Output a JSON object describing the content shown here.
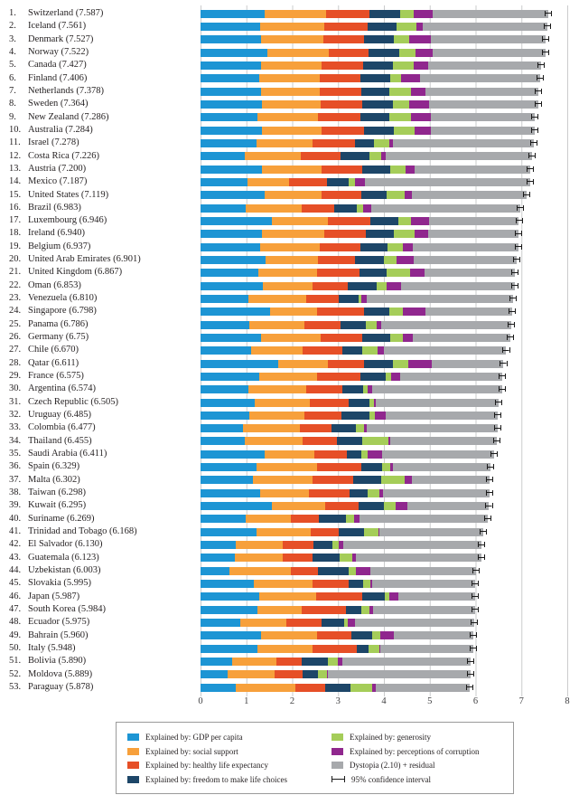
{
  "axis": {
    "ticks": [
      "0",
      "1",
      "2",
      "3",
      "4",
      "5",
      "6",
      "7",
      "8"
    ],
    "min": 0,
    "max": 8
  },
  "legend": {
    "entries": [
      {
        "label": "Explained by: GDP per capita",
        "color": "#1d95d4"
      },
      {
        "label": "Explained by: social support",
        "color": "#f7a03b"
      },
      {
        "label": "Explained by: healthy life expectancy",
        "color": "#e64f27"
      },
      {
        "label": "Explained by: freedom to make life choices",
        "color": "#1d4668"
      },
      {
        "label": "Explained by: generosity",
        "color": "#a5cd59"
      },
      {
        "label": "Explained by: perceptions of corruption",
        "color": "#90278e"
      },
      {
        "label": "Dystopia (2.10) + residual",
        "color": "#a7a9ac"
      },
      {
        "label": "95% confidence interval",
        "type": "whisker",
        "color": "#1a1a1a"
      }
    ]
  },
  "chart_data": {
    "type": "bar",
    "stacked": true,
    "orientation": "horizontal",
    "xlim": [
      0,
      8
    ],
    "grid": true,
    "ci_halfwidth": 0.08,
    "series_keys": [
      "gdp-per-capita",
      "social-support",
      "healthy-life-expectancy",
      "freedom",
      "generosity",
      "corruption",
      "dystopia-residual"
    ],
    "series_labels": [
      "Explained by: GDP per capita",
      "Explained by: social support",
      "Explained by: healthy life expectancy",
      "Explained by: freedom to make life choices",
      "Explained by: generosity",
      "Explained by: perceptions of corruption",
      "Dystopia (2.10) + residual"
    ],
    "series_colors": [
      "#1d95d4",
      "#f7a03b",
      "#e64f27",
      "#1d4668",
      "#a5cd59",
      "#90278e",
      "#a7a9ac"
    ],
    "rows": [
      {
        "rank": 1,
        "country": "Switzerland",
        "score": "7.587",
        "values": [
          1.397,
          1.35,
          0.941,
          0.666,
          0.297,
          0.42,
          2.517
        ]
      },
      {
        "rank": 2,
        "country": "Iceland",
        "score": "7.561",
        "values": [
          1.302,
          1.402,
          0.948,
          0.629,
          0.436,
          0.141,
          2.702
        ]
      },
      {
        "rank": 3,
        "country": "Denmark",
        "score": "7.527",
        "values": [
          1.325,
          1.361,
          0.875,
          0.649,
          0.341,
          0.484,
          2.492
        ]
      },
      {
        "rank": 4,
        "country": "Norway",
        "score": "7.522",
        "values": [
          1.459,
          1.331,
          0.885,
          0.67,
          0.347,
          0.365,
          2.465
        ]
      },
      {
        "rank": 5,
        "country": "Canada",
        "score": "7.427",
        "values": [
          1.326,
          1.323,
          0.906,
          0.633,
          0.458,
          0.33,
          2.452
        ]
      },
      {
        "rank": 6,
        "country": "Finland",
        "score": "7.406",
        "values": [
          1.29,
          1.318,
          0.889,
          0.642,
          0.234,
          0.414,
          2.62
        ]
      },
      {
        "rank": 7,
        "country": "Netherlands",
        "score": "7.378",
        "values": [
          1.329,
          1.28,
          0.893,
          0.616,
          0.476,
          0.318,
          2.466
        ]
      },
      {
        "rank": 8,
        "country": "Sweden",
        "score": "7.364",
        "values": [
          1.332,
          1.289,
          0.911,
          0.66,
          0.363,
          0.438,
          2.371
        ]
      },
      {
        "rank": 9,
        "country": "New Zealand",
        "score": "7.286",
        "values": [
          1.25,
          1.32,
          0.908,
          0.639,
          0.475,
          0.429,
          2.264
        ]
      },
      {
        "rank": 10,
        "country": "Australia",
        "score": "7.284",
        "values": [
          1.334,
          1.309,
          0.932,
          0.651,
          0.436,
          0.356,
          2.266
        ]
      },
      {
        "rank": 11,
        "country": "Israel",
        "score": "7.278",
        "values": [
          1.229,
          1.224,
          0.914,
          0.413,
          0.332,
          0.078,
          3.089
        ]
      },
      {
        "rank": 12,
        "country": "Costa Rica",
        "score": "7.226",
        "values": [
          0.956,
          1.238,
          0.86,
          0.634,
          0.255,
          0.106,
          3.177
        ]
      },
      {
        "rank": 13,
        "country": "Austria",
        "score": "7.200",
        "values": [
          1.337,
          1.297,
          0.89,
          0.624,
          0.331,
          0.187,
          2.533
        ]
      },
      {
        "rank": 14,
        "country": "Mexico",
        "score": "7.187",
        "values": [
          1.021,
          0.915,
          0.814,
          0.482,
          0.141,
          0.213,
          3.602
        ]
      },
      {
        "rank": 15,
        "country": "United States",
        "score": "7.119",
        "values": [
          1.395,
          1.247,
          0.862,
          0.546,
          0.401,
          0.159,
          2.51
        ]
      },
      {
        "rank": 16,
        "country": "Brazil",
        "score": "6.983",
        "values": [
          0.981,
          1.233,
          0.697,
          0.49,
          0.146,
          0.175,
          3.26
        ]
      },
      {
        "rank": 17,
        "country": "Luxembourg",
        "score": "6.946",
        "values": [
          1.564,
          1.22,
          0.919,
          0.616,
          0.28,
          0.378,
          1.97
        ]
      },
      {
        "rank": 18,
        "country": "Ireland",
        "score": "6.940",
        "values": [
          1.336,
          1.369,
          0.895,
          0.618,
          0.459,
          0.287,
          1.976
        ]
      },
      {
        "rank": 19,
        "country": "Belgium",
        "score": "6.937",
        "values": [
          1.308,
          1.286,
          0.897,
          0.585,
          0.339,
          0.225,
          2.298
        ]
      },
      {
        "rank": 20,
        "country": "United Arab Emirates",
        "score": "6.901",
        "values": [
          1.427,
          1.126,
          0.809,
          0.642,
          0.264,
          0.386,
          2.247
        ]
      },
      {
        "rank": 21,
        "country": "United Kingdom",
        "score": "6.867",
        "values": [
          1.266,
          1.285,
          0.909,
          0.596,
          0.519,
          0.321,
          1.97
        ]
      },
      {
        "rank": 22,
        "country": "Oman",
        "score": "6.853",
        "values": [
          1.36,
          1.082,
          0.763,
          0.633,
          0.215,
          0.325,
          2.475
        ]
      },
      {
        "rank": 23,
        "country": "Venezuela",
        "score": "6.810",
        "values": [
          1.044,
          1.256,
          0.721,
          0.429,
          0.058,
          0.111,
          3.191
        ]
      },
      {
        "rank": 24,
        "country": "Singapore",
        "score": "6.798",
        "values": [
          1.522,
          1.02,
          1.025,
          0.543,
          0.311,
          0.492,
          1.885
        ]
      },
      {
        "rank": 25,
        "country": "Panama",
        "score": "6.786",
        "values": [
          1.064,
          1.199,
          0.797,
          0.542,
          0.244,
          0.093,
          2.848
        ]
      },
      {
        "rank": 26,
        "country": "Germany",
        "score": "6.75",
        "values": [
          1.328,
          1.299,
          0.892,
          0.615,
          0.282,
          0.218,
          2.116
        ]
      },
      {
        "rank": 27,
        "country": "Chile",
        "score": "6.670",
        "values": [
          1.107,
          1.124,
          0.859,
          0.441,
          0.334,
          0.129,
          2.676
        ]
      },
      {
        "rank": 28,
        "country": "Qatar",
        "score": "6.611",
        "values": [
          1.69,
          1.079,
          0.797,
          0.64,
          0.326,
          0.522,
          1.557
        ]
      },
      {
        "rank": 29,
        "country": "France",
        "score": "6.575",
        "values": [
          1.278,
          1.26,
          0.946,
          0.55,
          0.123,
          0.206,
          2.211
        ]
      },
      {
        "rank": 30,
        "country": "Argentina",
        "score": "6.574",
        "values": [
          1.054,
          1.248,
          0.787,
          0.45,
          0.115,
          0.085,
          2.836
        ]
      },
      {
        "rank": 31,
        "country": "Czech Republic",
        "score": "6.505",
        "values": [
          1.179,
          1.206,
          0.845,
          0.464,
          0.087,
          0.038,
          2.685
        ]
      },
      {
        "rank": 32,
        "country": "Uruguay",
        "score": "6.485",
        "values": [
          1.062,
          1.201,
          0.812,
          0.604,
          0.123,
          0.246,
          2.438
        ]
      },
      {
        "rank": 33,
        "country": "Colombia",
        "score": "6.477",
        "values": [
          0.919,
          1.24,
          0.691,
          0.535,
          0.184,
          0.051,
          2.857
        ]
      },
      {
        "rank": 34,
        "country": "Thailand",
        "score": "6.455",
        "values": [
          0.967,
          1.265,
          0.739,
          0.557,
          0.576,
          0.032,
          2.319
        ]
      },
      {
        "rank": 35,
        "country": "Saudi Arabia",
        "score": "6.411",
        "values": [
          1.395,
          1.084,
          0.72,
          0.31,
          0.137,
          0.325,
          2.439
        ]
      },
      {
        "rank": 36,
        "country": "Spain",
        "score": "6.329",
        "values": [
          1.23,
          1.314,
          0.956,
          0.46,
          0.182,
          0.064,
          2.124
        ]
      },
      {
        "rank": 37,
        "country": "Malta",
        "score": "6.302",
        "values": [
          1.152,
          1.301,
          0.887,
          0.604,
          0.518,
          0.144,
          1.696
        ]
      },
      {
        "rank": 38,
        "country": "Taiwan",
        "score": "6.298",
        "values": [
          1.291,
          1.076,
          0.875,
          0.397,
          0.257,
          0.081,
          2.323
        ]
      },
      {
        "rank": 39,
        "country": "Kuwait",
        "score": "6.295",
        "values": [
          1.554,
          1.166,
          0.725,
          0.555,
          0.259,
          0.256,
          1.78
        ]
      },
      {
        "rank": 40,
        "country": "Suriname",
        "score": "6.269",
        "values": [
          0.995,
          0.972,
          0.608,
          0.597,
          0.169,
          0.136,
          2.791
        ]
      },
      {
        "rank": 41,
        "country": "Trinidad and Tobago",
        "score": "6.168",
        "values": [
          1.212,
          1.184,
          0.615,
          0.559,
          0.318,
          0.011,
          2.269
        ]
      },
      {
        "rank": 42,
        "country": "El Salvador",
        "score": "6.130",
        "values": [
          0.765,
          1.025,
          0.677,
          0.407,
          0.143,
          0.107,
          3.007
        ]
      },
      {
        "rank": 43,
        "country": "Guatemala",
        "score": "6.123",
        "values": [
          0.746,
          1.044,
          0.644,
          0.598,
          0.281,
          0.074,
          2.737
        ]
      },
      {
        "rank": 44,
        "country": "Uzbekistan",
        "score": "6.003",
        "values": [
          0.632,
          1.34,
          0.598,
          0.658,
          0.162,
          0.308,
          2.304
        ]
      },
      {
        "rank": 45,
        "country": "Slovakia",
        "score": "5.995",
        "values": [
          1.169,
          1.27,
          0.789,
          0.318,
          0.169,
          0.034,
          2.246
        ]
      },
      {
        "rank": 46,
        "country": "Japan",
        "score": "5.987",
        "values": [
          1.271,
          1.257,
          0.991,
          0.496,
          0.107,
          0.187,
          1.679
        ]
      },
      {
        "rank": 47,
        "country": "South Korea",
        "score": "5.984",
        "values": [
          1.245,
          0.958,
          0.965,
          0.332,
          0.186,
          0.079,
          2.22
        ]
      },
      {
        "rank": 48,
        "country": "Ecuador",
        "score": "5.975",
        "values": [
          0.864,
          1.003,
          0.774,
          0.486,
          0.092,
          0.147,
          2.61
        ]
      },
      {
        "rank": 49,
        "country": "Bahrain",
        "score": "5.960",
        "values": [
          1.324,
          1.215,
          0.747,
          0.455,
          0.174,
          0.306,
          1.738
        ]
      },
      {
        "rank": 50,
        "country": "Italy",
        "score": "5.948",
        "values": [
          1.251,
          1.198,
          0.954,
          0.262,
          0.228,
          0.026,
          2.028
        ]
      },
      {
        "rank": 51,
        "country": "Bolivia",
        "score": "5.890",
        "values": [
          0.681,
          0.978,
          0.539,
          0.574,
          0.228,
          0.085,
          2.805
        ]
      },
      {
        "rank": 52,
        "country": "Moldova",
        "score": "5.889",
        "values": [
          0.594,
          1.015,
          0.618,
          0.328,
          0.21,
          0.016,
          3.107
        ]
      },
      {
        "rank": 53,
        "country": "Paraguay",
        "score": "5.878",
        "values": [
          0.76,
          1.305,
          0.661,
          0.539,
          0.474,
          0.082,
          2.056
        ]
      }
    ]
  }
}
